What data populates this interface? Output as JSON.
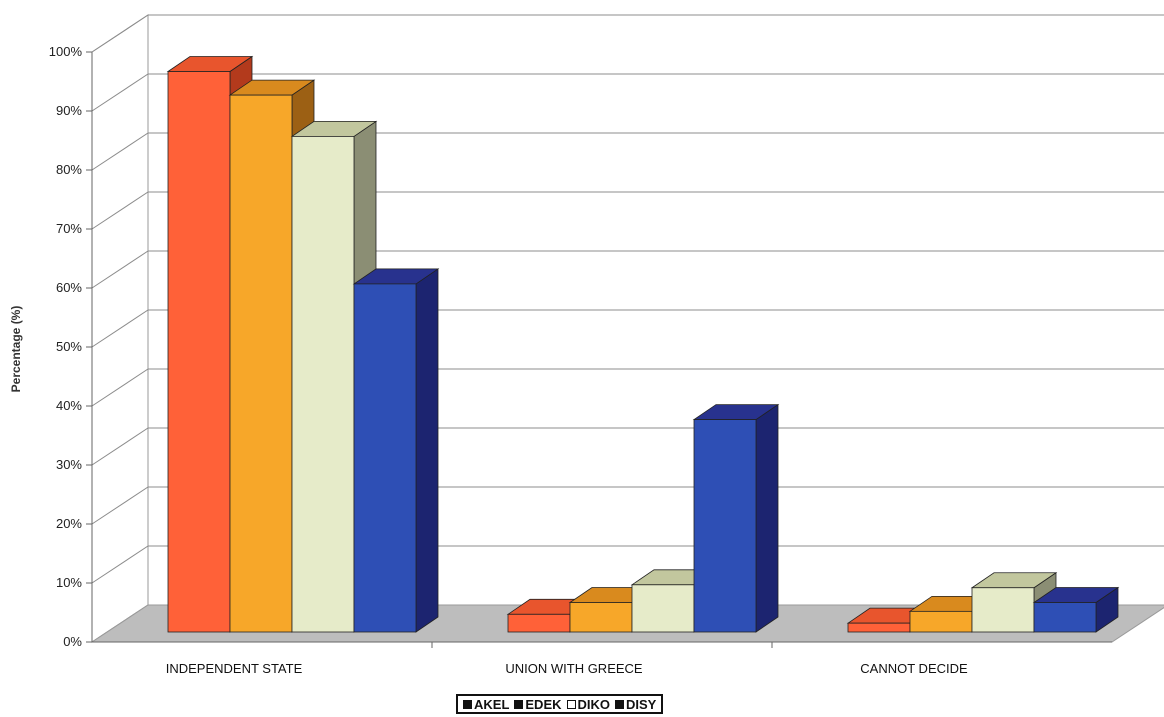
{
  "chart_data": {
    "type": "bar",
    "title": "",
    "xlabel": "",
    "ylabel": "Percentage (%)",
    "ylim": [
      0,
      100
    ],
    "yticks": [
      "0%",
      "10%",
      "20%",
      "30%",
      "40%",
      "50%",
      "60%",
      "70%",
      "80%",
      "90%",
      "100%"
    ],
    "categories": [
      "INDEPENDENT STATE",
      "UNION WITH GREECE",
      "CANNOT DECIDE"
    ],
    "series": [
      {
        "name": "AKEL",
        "values": [
          95,
          3,
          1.5
        ]
      },
      {
        "name": "EDEK",
        "values": [
          91,
          5,
          3.5
        ]
      },
      {
        "name": "DIKO",
        "values": [
          84,
          8,
          7.5
        ]
      },
      {
        "name": "DISY",
        "values": [
          59,
          36,
          5
        ]
      }
    ],
    "grid": true,
    "legend_position": "bottom-center",
    "colors": {
      "AKEL": {
        "front": "#ff6138",
        "top": "#e8552d",
        "side": "#b33a1c"
      },
      "EDEK": {
        "front": "#f7a729",
        "top": "#d98a1e",
        "side": "#9c6014"
      },
      "DIKO": {
        "front": "#e6ebc9",
        "top": "#c2c79e",
        "side": "#8b8e74"
      },
      "DISY": {
        "front": "#2e4fb5",
        "top": "#28328e",
        "side": "#1c2470"
      }
    }
  },
  "legend": {
    "items": [
      {
        "label": "AKEL",
        "swatch": "#111111"
      },
      {
        "label": "EDEK",
        "swatch": "#111111"
      },
      {
        "label": "DIKO",
        "swatch": "#ffffff"
      },
      {
        "label": "DISY",
        "swatch": "#111111"
      }
    ]
  }
}
